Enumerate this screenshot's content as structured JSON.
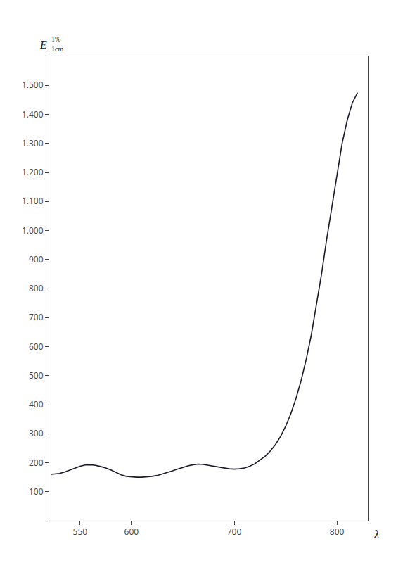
{
  "chart_data": {
    "type": "line",
    "color": "#1a1a2a",
    "grid": false,
    "annotations": [
      "λ",
      "E",
      "1%",
      "1cm"
    ],
    "xlim": [
      520,
      830
    ],
    "ylim": [
      0,
      1600
    ],
    "xticks": [
      550,
      600,
      700,
      800
    ],
    "yticks": [
      100,
      200,
      300,
      400,
      500,
      600,
      700,
      800,
      900,
      {
        "value": 1000,
        "label": "1.000"
      },
      {
        "value": 1100,
        "label": "1.100"
      },
      {
        "value": 1200,
        "label": "1.200"
      },
      {
        "value": 1300,
        "label": "1.300"
      },
      {
        "value": 1400,
        "label": "1.400"
      },
      {
        "value": 1500,
        "label": "1.500"
      }
    ],
    "x": [
      522,
      530,
      535,
      540,
      545,
      550,
      555,
      560,
      565,
      570,
      575,
      580,
      585,
      590,
      595,
      600,
      605,
      610,
      615,
      620,
      625,
      630,
      635,
      640,
      645,
      650,
      655,
      660,
      665,
      670,
      675,
      680,
      685,
      690,
      695,
      700,
      705,
      710,
      715,
      720,
      725,
      730,
      735,
      740,
      745,
      750,
      755,
      760,
      765,
      770,
      775,
      780,
      785,
      790,
      795,
      800,
      805,
      810,
      815,
      820
    ],
    "values": [
      160,
      163,
      168,
      174,
      181,
      188,
      192,
      193,
      191,
      187,
      182,
      175,
      166,
      158,
      153,
      151,
      150,
      150,
      151,
      153,
      156,
      161,
      166,
      172,
      178,
      184,
      189,
      193,
      195,
      194,
      191,
      188,
      184,
      181,
      179,
      178,
      179,
      182,
      188,
      196,
      208,
      222,
      240,
      262,
      290,
      325,
      368,
      420,
      482,
      555,
      640,
      740,
      850,
      970,
      1080,
      1200,
      1300,
      1380,
      1440,
      1475
    ]
  }
}
